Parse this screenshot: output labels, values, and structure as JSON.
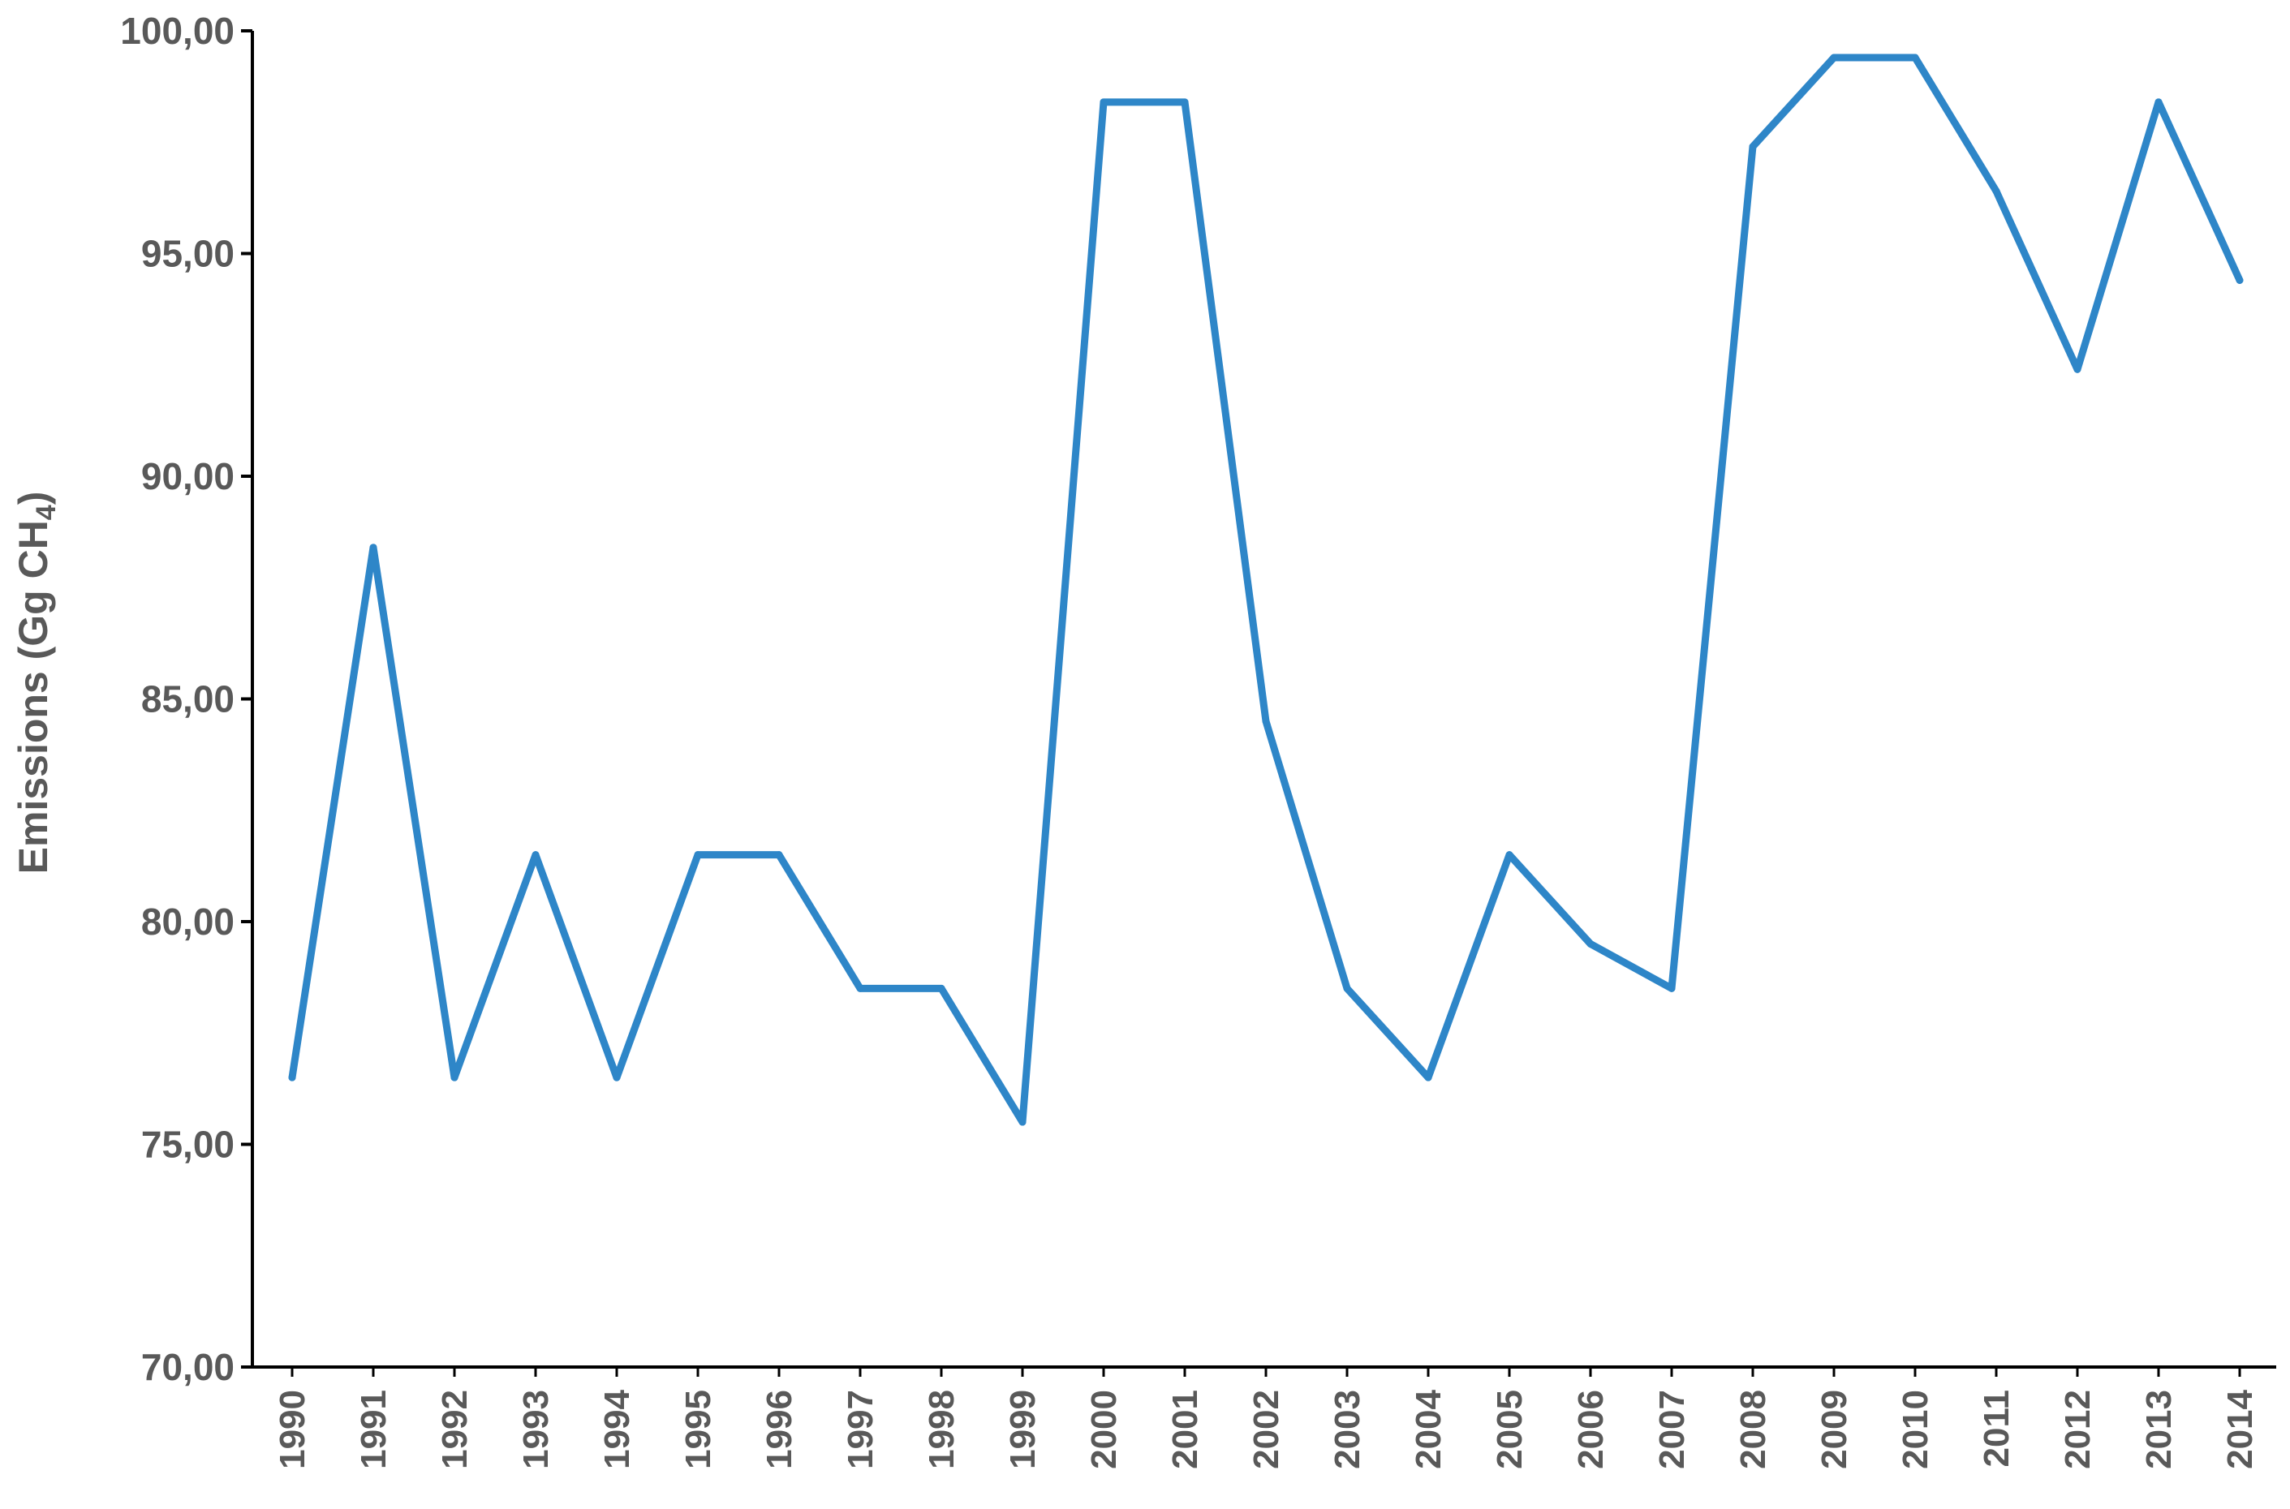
{
  "chart_data": {
    "type": "line",
    "title": "",
    "xlabel": "",
    "ylabel_main": "Emissions (Gg CH",
    "ylabel_sub": "4",
    "ylabel_close": ")",
    "ylim": [
      70,
      100
    ],
    "yticks": [
      70,
      75,
      80,
      85,
      90,
      95,
      100
    ],
    "ytick_labels": [
      "70,00",
      "75,00",
      "80,00",
      "85,00",
      "90,00",
      "95,00",
      "100,00"
    ],
    "grid": false,
    "legend": "none",
    "categories": [
      "1990",
      "1991",
      "1992",
      "1993",
      "1994",
      "1995",
      "1996",
      "1997",
      "1998",
      "1999",
      "2000",
      "2001",
      "2002",
      "2003",
      "2004",
      "2005",
      "2006",
      "2007",
      "2008",
      "2009",
      "2010",
      "2011",
      "2012",
      "2013",
      "2014"
    ],
    "series": [
      {
        "color": "#2e86c8",
        "values": [
          76.5,
          88.4,
          76.5,
          81.5,
          76.5,
          81.5,
          81.5,
          78.5,
          78.5,
          75.5,
          98.4,
          98.4,
          84.5,
          78.5,
          76.5,
          81.5,
          79.5,
          78.5,
          97.4,
          99.4,
          99.4,
          96.4,
          92.4,
          98.4,
          94.4
        ]
      }
    ]
  }
}
